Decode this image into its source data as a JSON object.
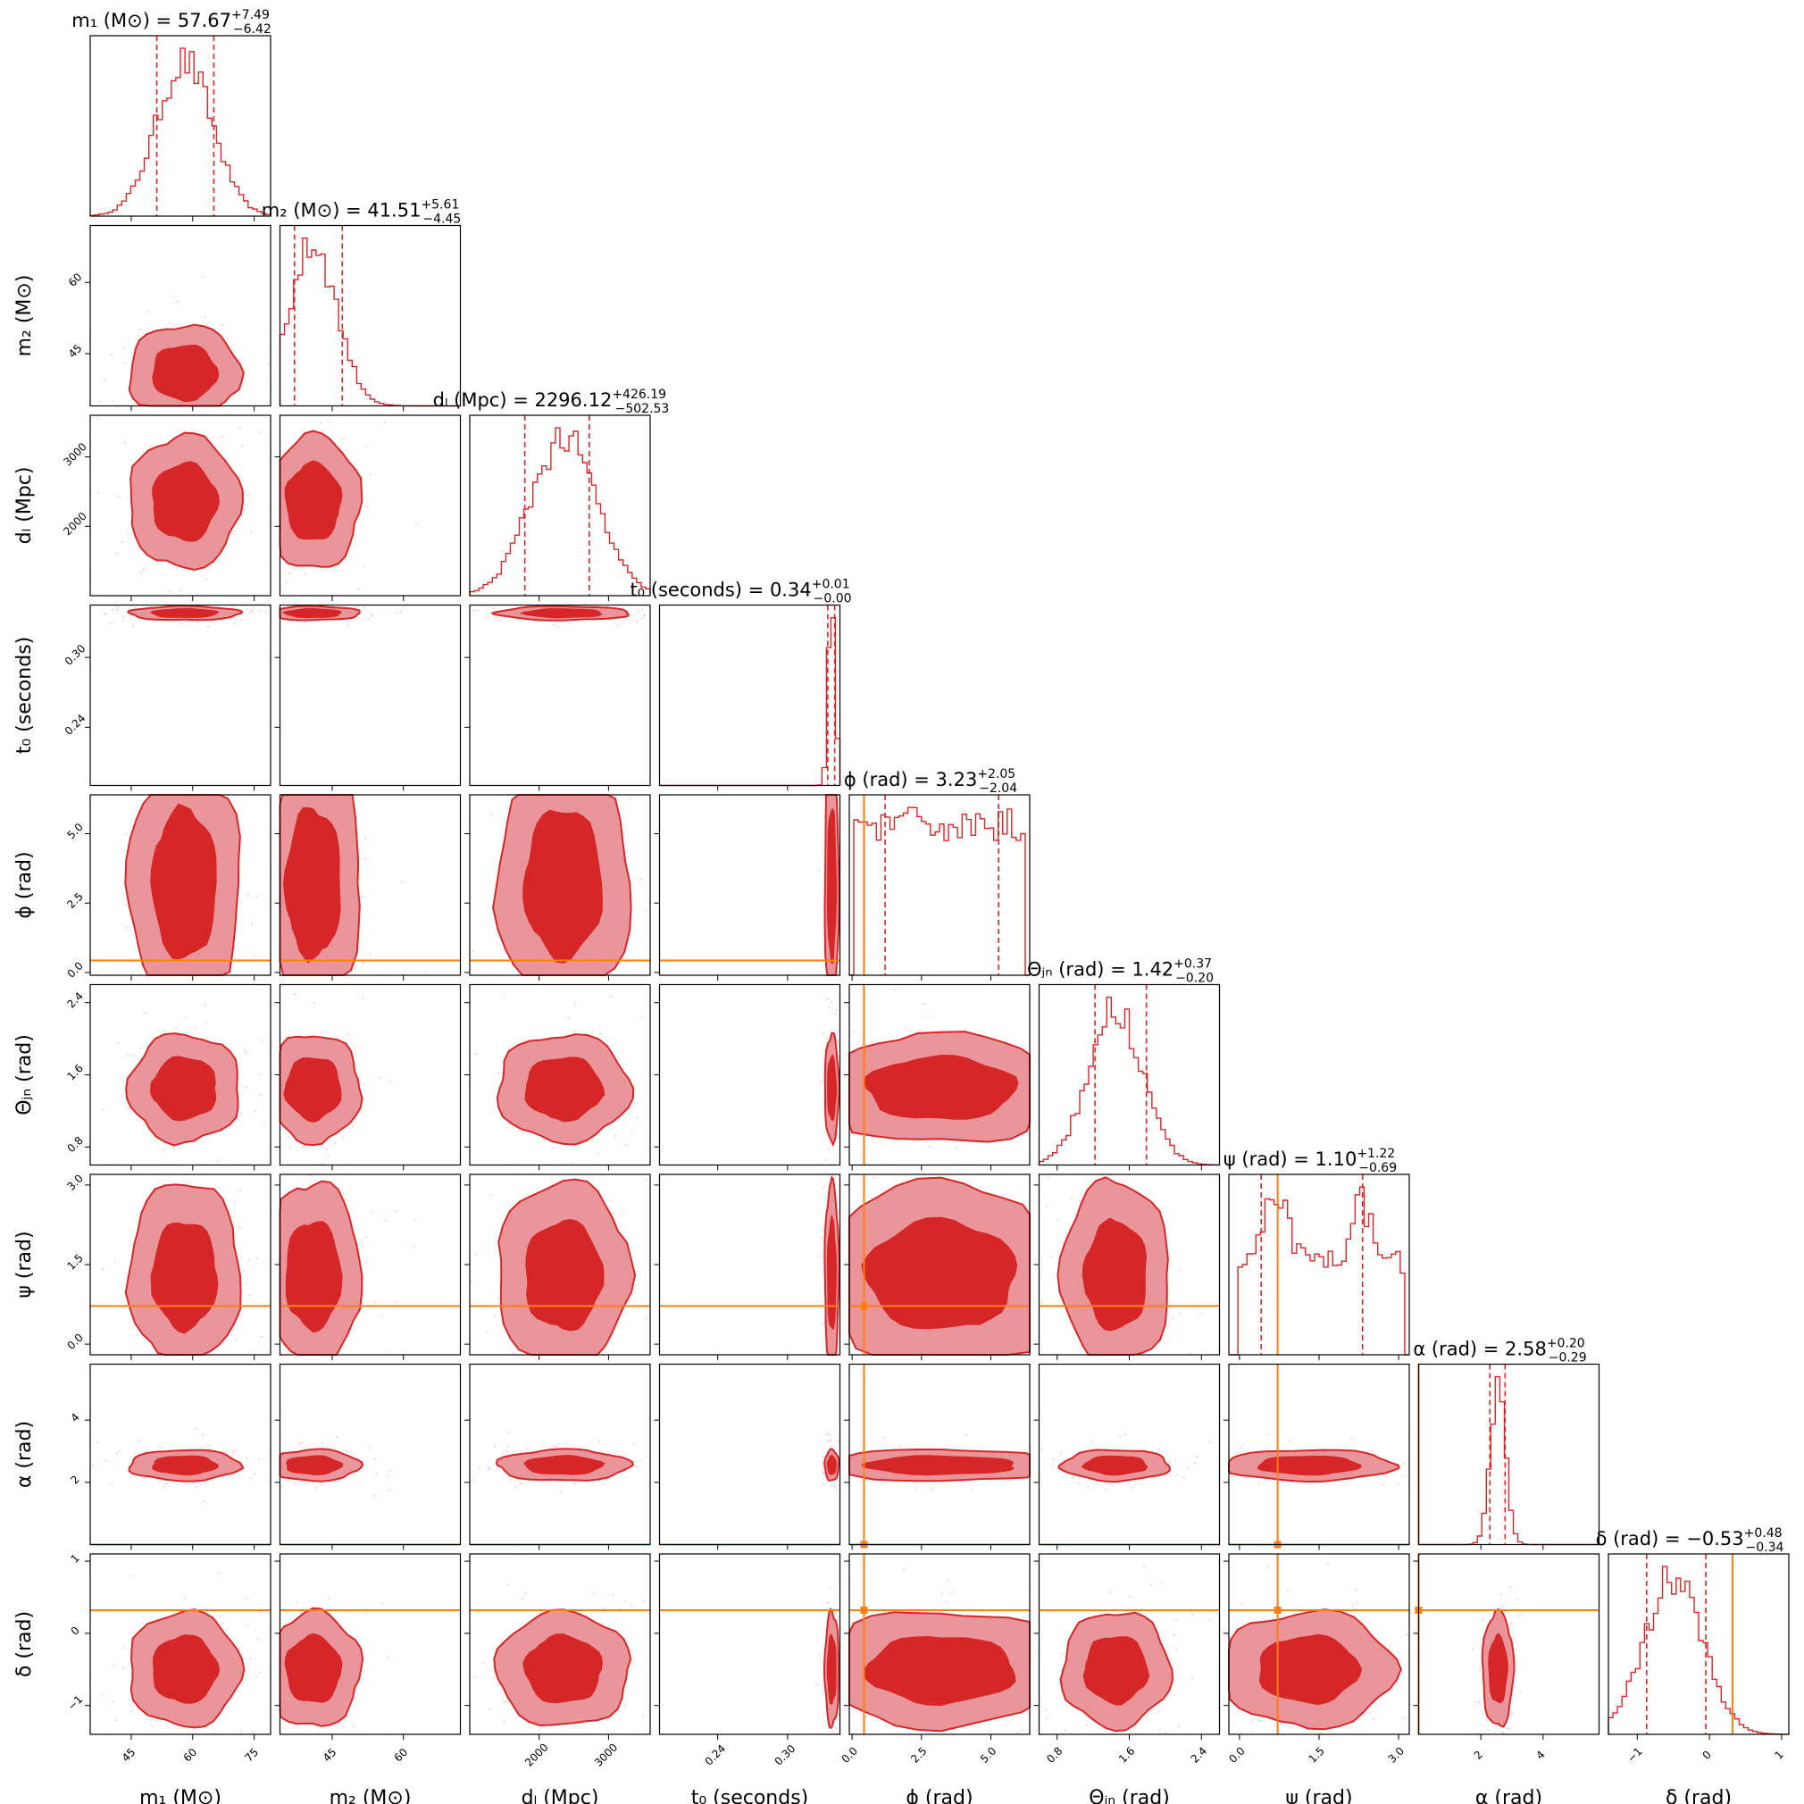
{
  "chart_data": {
    "type": "corner",
    "description_of_marks": "posterior histograms (diagonal) and 2D density contours (lower triangle)",
    "colors": {
      "posterior": "#d62728",
      "posterior_light": "#e88a8f",
      "truth": "#ff7f0e",
      "frame": "#000000"
    },
    "parameters": [
      {
        "key": "m1",
        "axis_label": "m₁ (M⊙)",
        "title_name": "m₁ (M⊙)",
        "median": "57.67",
        "err_plus": "+7.49",
        "err_minus": "−6.42",
        "range": [
          35,
          79
        ],
        "ticks": [
          45,
          60,
          75
        ],
        "tick_labels": [
          "45",
          "60",
          "75"
        ],
        "q16": 51.25,
        "q84": 65.16,
        "mean": 58,
        "sd": 6.8,
        "truth": null
      },
      {
        "key": "m2",
        "axis_label": "m₂ (M⊙)",
        "title_name": "m₂ (M⊙)",
        "median": "41.51",
        "err_plus": "+5.61",
        "err_minus": "−4.45",
        "range": [
          34,
          72
        ],
        "ticks": [
          45,
          60
        ],
        "tick_labels": [
          "45",
          "60"
        ],
        "q16": 37.06,
        "q84": 47.12,
        "mean": 41,
        "sd": 5,
        "truth": null
      },
      {
        "key": "dL",
        "axis_label": "dₗ (Mpc)",
        "title_name": "dₗ (Mpc)",
        "median": "2296.12",
        "err_plus": "+426.19",
        "err_minus": "−502.53",
        "range": [
          1000,
          3600
        ],
        "ticks": [
          2000,
          3000
        ],
        "tick_labels": [
          "2000",
          "3000"
        ],
        "q16": 1793.59,
        "q84": 2722.31,
        "mean": 2350,
        "sd": 480,
        "truth": null
      },
      {
        "key": "t0",
        "axis_label": "t₀ (seconds)",
        "title_name": "t₀ (seconds)",
        "median": "0.34",
        "err_plus": "+0.01",
        "err_minus": "−0.00",
        "range": [
          0.19,
          0.345
        ],
        "ticks": [
          0.24,
          0.3
        ],
        "tick_labels": [
          "0.24",
          "0.30"
        ],
        "q16": 0.3345,
        "q84": 0.3405,
        "mean": 0.338,
        "sd": 0.003,
        "truth": null
      },
      {
        "key": "phi",
        "axis_label": "ϕ (rad)",
        "title_name": "ϕ (rad)",
        "median": "3.23",
        "err_plus": "+2.05",
        "err_minus": "−2.04",
        "range": [
          -0.1,
          6.4
        ],
        "ticks": [
          0.0,
          2.5,
          5.0
        ],
        "tick_labels": [
          "0.0",
          "2.5",
          "5.0"
        ],
        "q16": 1.19,
        "q84": 5.28,
        "mean": 3.2,
        "sd": 1.8,
        "truth": 0.43
      },
      {
        "key": "theta_jn",
        "axis_label": "Θⱼₙ (rad)",
        "title_name": "Θⱼₙ (rad)",
        "median": "1.42",
        "err_plus": "+0.37",
        "err_minus": "−0.20",
        "range": [
          0.6,
          2.6
        ],
        "ticks": [
          0.8,
          1.6,
          2.4
        ],
        "tick_labels": [
          "0.8",
          "1.6",
          "2.4"
        ],
        "q16": 1.22,
        "q84": 1.79,
        "mean": 1.45,
        "sd": 0.3,
        "truth": null
      },
      {
        "key": "psi",
        "axis_label": "ψ (rad)",
        "title_name": "ψ (rad)",
        "median": "1.10",
        "err_plus": "+1.22",
        "err_minus": "−0.69",
        "range": [
          -0.2,
          3.2
        ],
        "ticks": [
          0.0,
          1.5,
          3.0
        ],
        "tick_labels": [
          "0.0",
          "1.5",
          "3.0"
        ],
        "q16": 0.41,
        "q84": 2.32,
        "mean": 1.3,
        "sd": 0.8,
        "truth": 0.72
      },
      {
        "key": "alpha",
        "axis_label": "α (rad)",
        "title_name": "α (rad)",
        "median": "2.58",
        "err_plus": "+0.20",
        "err_minus": "−0.29",
        "range": [
          0.0,
          5.8
        ],
        "ticks": [
          2,
          4
        ],
        "tick_labels": [
          "2",
          "4"
        ],
        "q16": 2.29,
        "q84": 2.78,
        "mean": 2.55,
        "sd": 0.25,
        "truth": 0.0
      },
      {
        "key": "delta",
        "axis_label": "δ (rad)",
        "title_name": "δ (rad)",
        "median": "−0.53",
        "err_plus": "+0.48",
        "err_minus": "−0.34",
        "range": [
          -1.4,
          1.1
        ],
        "ticks": [
          -1,
          0,
          1
        ],
        "tick_labels": [
          "−1",
          "0",
          "1"
        ],
        "q16": -0.87,
        "q84": -0.05,
        "mean": -0.5,
        "sd": 0.4,
        "truth": 0.32
      }
    ]
  }
}
